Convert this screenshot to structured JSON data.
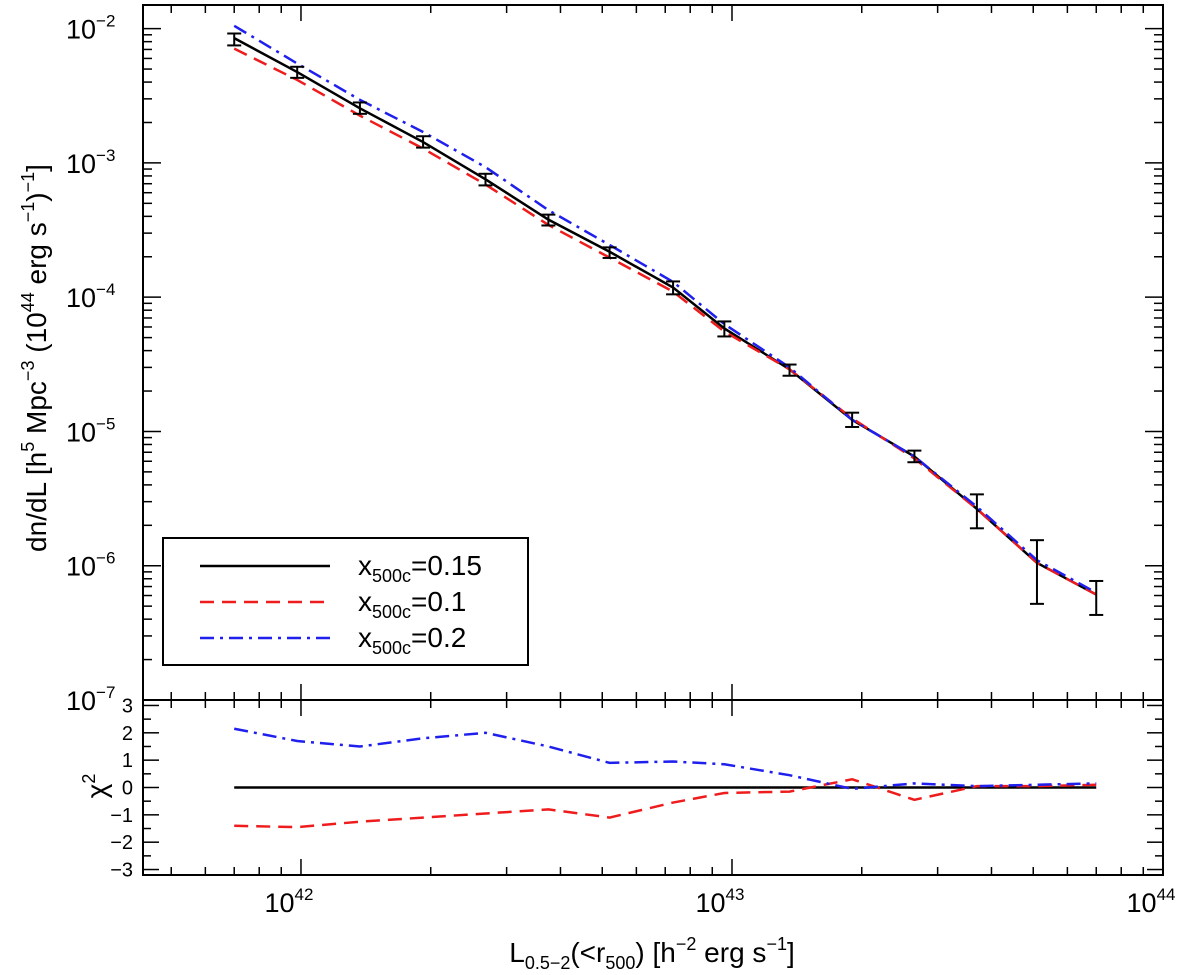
{
  "chart_data": [
    {
      "type": "line",
      "panel": "top",
      "xscale": "log",
      "yscale": "log",
      "xlim": [
        4.3e+41,
        1e+44
      ],
      "ylim": [
        1e-07,
        0.015
      ],
      "x_tick_labels": [
        {
          "value": 1e+42,
          "base": "10",
          "exp": "42"
        },
        {
          "value": 1e+43,
          "base": "10",
          "exp": "43"
        },
        {
          "value": 1e+44,
          "base": "10",
          "exp": "44"
        }
      ],
      "y_tick_labels": [
        {
          "value": 0.01,
          "base": "10",
          "exp": "−2"
        },
        {
          "value": 0.001,
          "base": "10",
          "exp": "−3"
        },
        {
          "value": 0.0001,
          "base": "10",
          "exp": "−4"
        },
        {
          "value": 1e-05,
          "base": "10",
          "exp": "−5"
        },
        {
          "value": 1e-06,
          "base": "10",
          "exp": "−6"
        },
        {
          "value": 1e-07,
          "base": "10",
          "exp": "−7"
        }
      ],
      "ylabel": {
        "main": "dn/dL [h",
        "sup1": "5",
        "mid": " Mpc",
        "sup2": "−3",
        "mid2": " (10",
        "sup3": "44",
        "mid3": " erg s",
        "sup4": "−1",
        "end": ")",
        "sup5": "−1",
        "close": "]"
      },
      "x": [
        7e+41,
        9.8e+41,
        1.37e+42,
        1.92e+42,
        2.68e+42,
        3.75e+42,
        5.2e+42,
        7.3e+42,
        9.6e+42,
        1.36e+43,
        1.9e+43,
        2.65e+43,
        3.7e+43,
        5.1e+43,
        7e+43
      ],
      "data_points": {
        "y": [
          0.0083,
          0.0047,
          0.00255,
          0.00143,
          0.00075,
          0.000375,
          0.000215,
          0.000118,
          5.8e-05,
          2.85e-05,
          1.22e-05,
          6.5e-06,
          2.65e-06,
          1e-06,
          6.1e-07
        ],
        "yerr_low": [
          0.0075,
          0.0043,
          0.00232,
          0.0013,
          0.00068,
          0.000342,
          0.000196,
          0.000105,
          5.1e-05,
          2.6e-05,
          1.08e-05,
          5.9e-06,
          1.9e-06,
          5.2e-07,
          4.3e-07
        ],
        "yerr_high": [
          0.0092,
          0.0052,
          0.00282,
          0.00158,
          0.00083,
          0.000412,
          0.000235,
          0.000131,
          6.6e-05,
          3.15e-05,
          1.38e-05,
          7.2e-06,
          3.4e-06,
          1.55e-06,
          7.7e-07
        ]
      },
      "series": [
        {
          "name": "x500c=0.15",
          "label_main": "x",
          "label_sub": "500c",
          "label_val": "=0.15",
          "color": "#000000",
          "dash": "",
          "values": [
            0.0085,
            0.00475,
            0.00255,
            0.00143,
            0.000755,
            0.000378,
            0.000218,
            0.000118,
            5.85e-05,
            2.9e-05,
            1.22e-05,
            6.5e-06,
            2.65e-06,
            1.05e-06,
            6.1e-07
          ]
        },
        {
          "name": "x500c=0.1",
          "label_main": "x",
          "label_sub": "500c",
          "label_val": "=0.1",
          "color": "#ee1c1c",
          "dash": "14,8",
          "values": [
            0.0071,
            0.00415,
            0.00225,
            0.00128,
            0.00069,
            0.000345,
            0.000197,
            0.00011,
            5.55e-05,
            2.9e-05,
            1.25e-05,
            6.3e-06,
            2.65e-06,
            1.05e-06,
            6.1e-07
          ]
        },
        {
          "name": "x500c=0.2",
          "label_main": "x",
          "label_sub": "500c",
          "label_val": "=0.2",
          "color": "#1f1fee",
          "dash": "14,6,3,6",
          "values": [
            0.0105,
            0.0055,
            0.00295,
            0.0017,
            0.00093,
            0.000445,
            0.000245,
            0.00013,
            6.3e-05,
            3e-05,
            1.22e-05,
            6.5e-06,
            2.75e-06,
            1.1e-06,
            6.3e-07
          ]
        }
      ],
      "legend": "bottom-left"
    },
    {
      "type": "line",
      "panel": "bottom",
      "xscale": "log",
      "ylim": [
        -3.2,
        3.2
      ],
      "y_ticks": [
        -3,
        -2,
        -1,
        0,
        1,
        2,
        3
      ],
      "y_tick_labels": [
        "−3",
        "−2",
        "−1",
        "0",
        "1",
        "2",
        "3"
      ],
      "ylabel": {
        "main": "χ",
        "sup": "2"
      },
      "xlabel": {
        "main": "L",
        "sub": "0.5−2",
        "mid": "(<r",
        "sub2": "500",
        "mid2": ") [h",
        "sup": "−2",
        "mid3": " erg s",
        "sup2": "−1",
        "end": "]"
      },
      "x": [
        7e+41,
        9.8e+41,
        1.37e+42,
        1.92e+42,
        2.68e+42,
        3.75e+42,
        5.2e+42,
        7.3e+42,
        9.6e+42,
        1.36e+43,
        1.9e+43,
        2.65e+43,
        3.7e+43,
        5.1e+43,
        7e+43
      ],
      "series": [
        {
          "name": "x500c=0.15",
          "color": "#000000",
          "dash": "",
          "values": [
            0,
            0,
            0,
            0,
            0,
            0,
            0,
            0,
            0,
            0,
            0,
            0,
            0,
            0,
            0
          ]
        },
        {
          "name": "x500c=0.1",
          "color": "#ee1c1c",
          "dash": "14,8",
          "values": [
            -1.4,
            -1.45,
            -1.25,
            -1.1,
            -0.95,
            -0.8,
            -1.1,
            -0.55,
            -0.2,
            -0.15,
            0.3,
            -0.45,
            0.05,
            0.05,
            0.1
          ]
        },
        {
          "name": "x500c=0.2",
          "color": "#1f1fee",
          "dash": "14,6,3,6",
          "values": [
            2.15,
            1.7,
            1.5,
            1.8,
            2.0,
            1.5,
            0.9,
            0.95,
            0.85,
            0.45,
            -0.05,
            0.15,
            0.05,
            0.1,
            0.15
          ]
        }
      ]
    }
  ]
}
